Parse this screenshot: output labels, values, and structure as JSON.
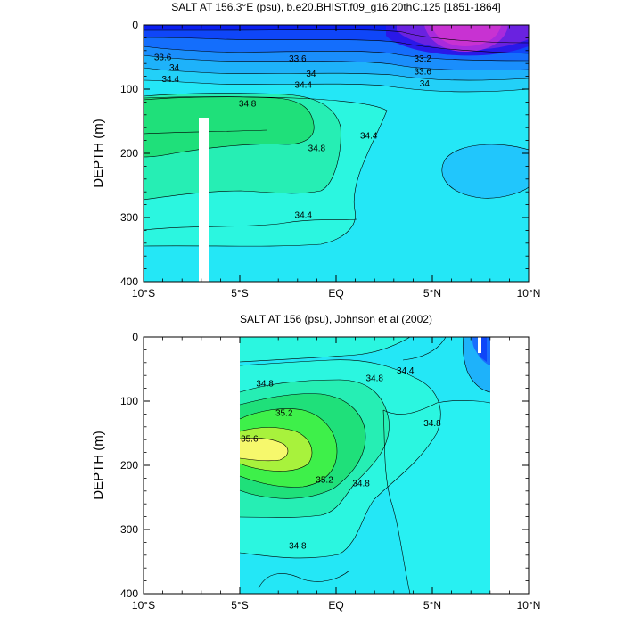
{
  "chart_data": [
    {
      "type": "contour",
      "title": "SALT AT 156.3°E (psu), b.e20.BHIST.f09_g16.20thC.125 [1851-1864]",
      "ylabel": "DEPTH (m)",
      "xlabel": "",
      "x_ticks": [
        "10°S",
        "5°S",
        "EQ",
        "5°N",
        "10°N"
      ],
      "y_ticks": [
        "0",
        "100",
        "200",
        "300",
        "400"
      ],
      "xlim": [
        -10,
        10
      ],
      "ylim": [
        0,
        400
      ],
      "y_reversed": true,
      "contour_levels": [
        33.2,
        33.4,
        33.6,
        33.8,
        34.0,
        34.2,
        34.4,
        34.6,
        34.8,
        35.0
      ],
      "contour_labels": [
        {
          "text": "33.6",
          "x": -9.0,
          "y": 50
        },
        {
          "text": "33.6",
          "x": -2.0,
          "y": 52
        },
        {
          "text": "33.2",
          "x": 4.5,
          "y": 52
        },
        {
          "text": "34",
          "x": -8.4,
          "y": 66
        },
        {
          "text": "34",
          "x": -1.3,
          "y": 76
        },
        {
          "text": "33.6",
          "x": 4.5,
          "y": 72
        },
        {
          "text": "34.4",
          "x": -8.6,
          "y": 84
        },
        {
          "text": "34.4",
          "x": -1.7,
          "y": 93
        },
        {
          "text": "34",
          "x": 4.6,
          "y": 91
        },
        {
          "text": "34.8",
          "x": -4.6,
          "y": 122
        },
        {
          "text": "34.8",
          "x": -1.0,
          "y": 192
        },
        {
          "text": "34.4",
          "x": 1.7,
          "y": 172
        },
        {
          "text": "34.4",
          "x": -1.7,
          "y": 296
        }
      ],
      "missing_data_column_x": -7.0,
      "missing_data_depth_from": 145,
      "color_scale": [
        "#0a1ef0",
        "#0f46f8",
        "#1a6efc",
        "#1e9ef8",
        "#21c6fc",
        "#23e6f2",
        "#2bf6e0",
        "#26eeb4",
        "#1fe07a",
        "#30ea4c",
        "#a8f23c",
        "#f6f86c"
      ]
    },
    {
      "type": "contour",
      "title": "SALT AT 156 (psu), Johnson et al (2002)",
      "ylabel": "DEPTH (m)",
      "xlabel": "",
      "x_ticks": [
        "10°S",
        "5°S",
        "EQ",
        "5°N",
        "10°N"
      ],
      "y_ticks": [
        "0",
        "100",
        "200",
        "300",
        "400"
      ],
      "xlim": [
        -10,
        10
      ],
      "ylim": [
        0,
        400
      ],
      "y_reversed": true,
      "data_extent_x": [
        -5,
        8
      ],
      "contour_levels": [
        34.4,
        34.6,
        34.8,
        35.0,
        35.2,
        35.4,
        35.6
      ],
      "contour_labels": [
        {
          "text": "34.8",
          "x": -3.7,
          "y": 72
        },
        {
          "text": "34.8",
          "x": 2.0,
          "y": 64
        },
        {
          "text": "34.4",
          "x": 3.6,
          "y": 52
        },
        {
          "text": "35.2",
          "x": -2.7,
          "y": 118
        },
        {
          "text": "34.8",
          "x": 5.0,
          "y": 134
        },
        {
          "text": "35.6",
          "x": -4.5,
          "y": 158
        },
        {
          "text": "35.2",
          "x": -0.6,
          "y": 222
        },
        {
          "text": "34.8",
          "x": 1.3,
          "y": 228
        },
        {
          "text": "34.8",
          "x": -2.0,
          "y": 325
        }
      ],
      "color_scale": [
        "#1a6efc",
        "#1e9ef8",
        "#21c6fc",
        "#23e6f2",
        "#2bf6e0",
        "#26eeb4",
        "#1fe07a",
        "#30ea4c",
        "#a8f23c",
        "#f6f86c"
      ]
    }
  ]
}
